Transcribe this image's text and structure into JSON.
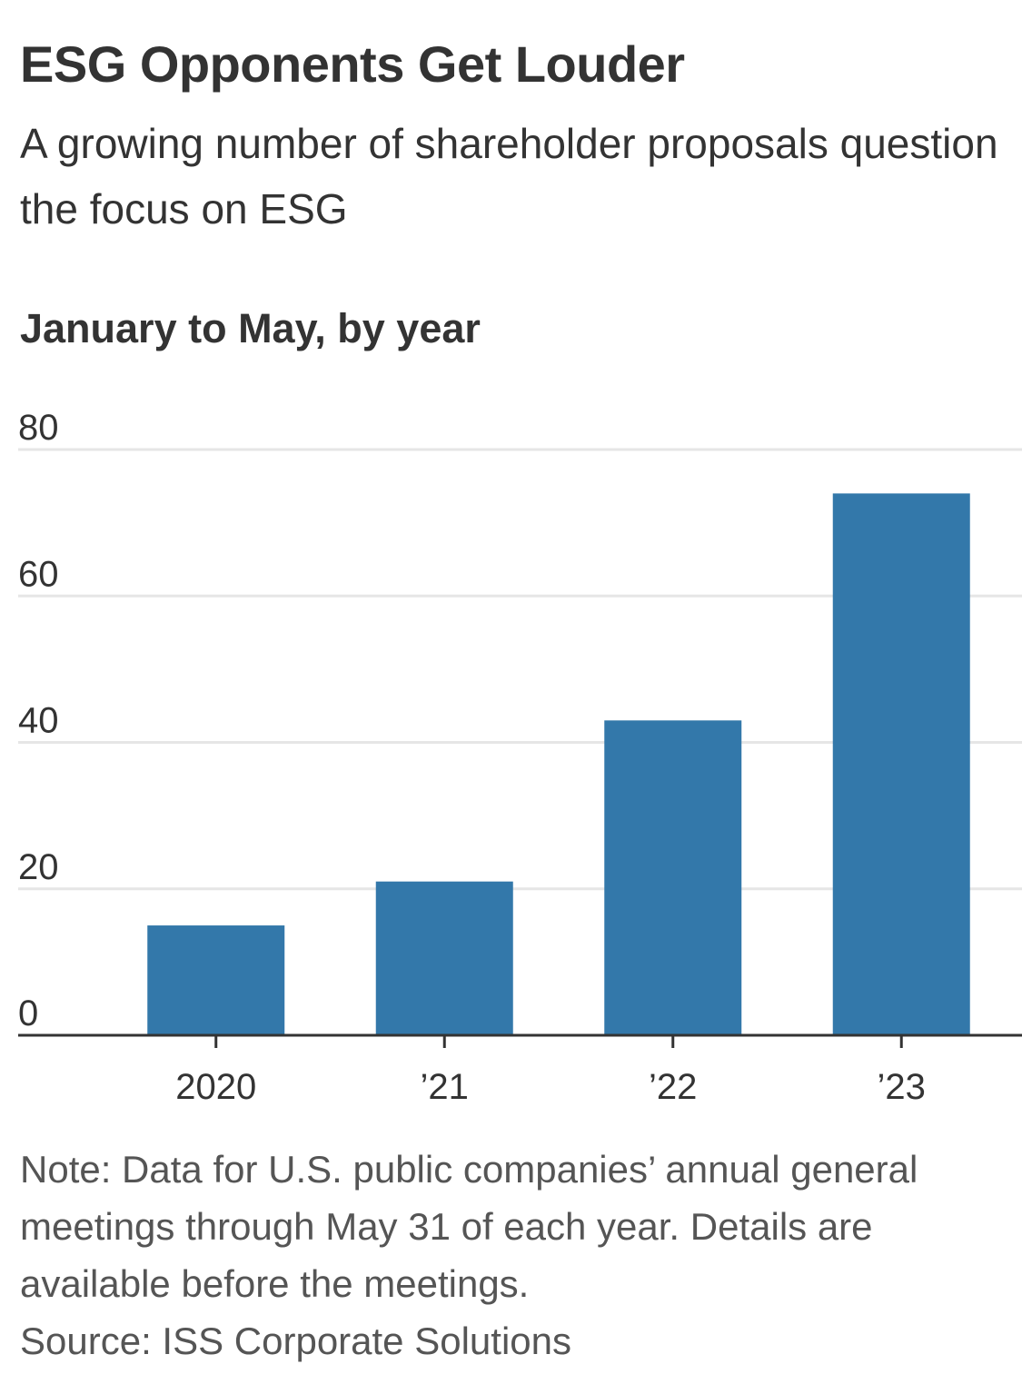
{
  "header": {
    "title": "ESG Opponents Get Louder",
    "subtitle": "A growing number of shareholder proposals question the focus on ESG"
  },
  "chart_heading": "January to May, by year",
  "chart_data": {
    "type": "bar",
    "title": "ESG Opponents Get Louder",
    "subtitle": "A growing number of shareholder proposals question the focus on ESG",
    "xlabel": "",
    "ylabel": "",
    "categories": [
      "2020",
      "’21",
      "’22",
      "’23"
    ],
    "values": [
      15,
      21,
      43,
      74
    ],
    "ylim": [
      0,
      80
    ],
    "yticks": [
      0,
      20,
      40,
      60,
      80
    ],
    "grid": true,
    "bar_color": "#3378aa",
    "gridline_color": "#e6e6e6",
    "axis_color": "#333333"
  },
  "footer": {
    "note": "Note: Data for U.S. public companies’ annual general meetings through May 31 of each year. Details are available before the meetings.",
    "source": "Source: ISS Corporate Solutions"
  }
}
